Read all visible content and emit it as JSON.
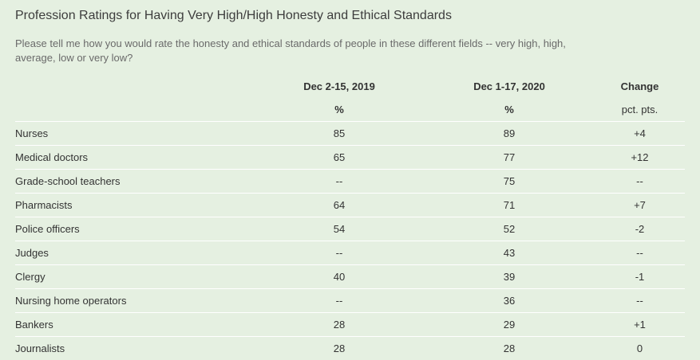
{
  "chart_data": {
    "type": "table",
    "title": "Profession Ratings for Having Very High/High Honesty and Ethical Standards",
    "subtitle": "Please tell me how you would rate the honesty and ethical standards of people in these different fields -- very high, high, average, low or very low?",
    "columns": [
      {
        "header": "Dec 2-15, 2019",
        "unit": "%"
      },
      {
        "header": "Dec 1-17, 2020",
        "unit": "%"
      },
      {
        "header": "Change",
        "unit": "pct. pts."
      }
    ],
    "rows": [
      {
        "label": "Nurses",
        "values": [
          "85",
          "89",
          "+4"
        ]
      },
      {
        "label": "Medical doctors",
        "values": [
          "65",
          "77",
          "+12"
        ]
      },
      {
        "label": "Grade-school teachers",
        "values": [
          "--",
          "75",
          "--"
        ]
      },
      {
        "label": "Pharmacists",
        "values": [
          "64",
          "71",
          "+7"
        ]
      },
      {
        "label": "Police officers",
        "values": [
          "54",
          "52",
          "-2"
        ]
      },
      {
        "label": "Judges",
        "values": [
          "--",
          "43",
          "--"
        ]
      },
      {
        "label": "Clergy",
        "values": [
          "40",
          "39",
          "-1"
        ]
      },
      {
        "label": "Nursing home operators",
        "values": [
          "--",
          "36",
          "--"
        ]
      },
      {
        "label": "Bankers",
        "values": [
          "28",
          "29",
          "+1"
        ]
      },
      {
        "label": "Journalists",
        "values": [
          "28",
          "28",
          "0"
        ]
      }
    ]
  },
  "colors": {
    "background": "#e5f0e1",
    "row_divider": "#ffffff",
    "title_text": "#3d3d3d",
    "subtitle_text": "#6a6a6a"
  }
}
